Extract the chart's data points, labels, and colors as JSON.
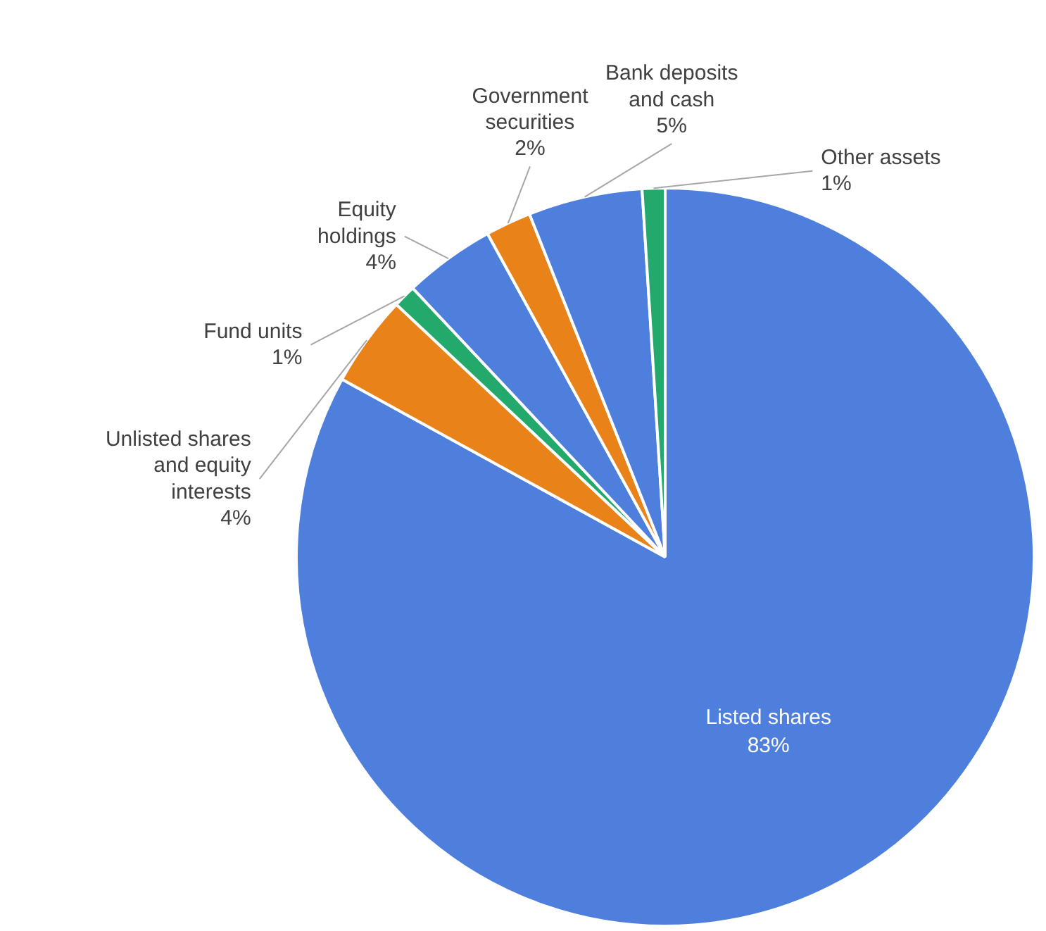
{
  "chart_data": {
    "type": "pie",
    "categories": [
      "Listed shares",
      "Unlisted shares\nand equity\ninterests",
      "Fund units",
      "Equity\nholdings",
      "Government\nsecurities",
      "Bank deposits\nand cash",
      "Other assets"
    ],
    "values": [
      83,
      4,
      1,
      4,
      2,
      5,
      1
    ],
    "colors": [
      "#4e7fdc",
      "#e88219",
      "#22a96b",
      "#4e7fdc",
      "#e88219",
      "#4e7fdc",
      "#22a96b"
    ],
    "value_labels": [
      "83%",
      "4%",
      "1%",
      "4%",
      "2%",
      "5%",
      "1%"
    ]
  }
}
